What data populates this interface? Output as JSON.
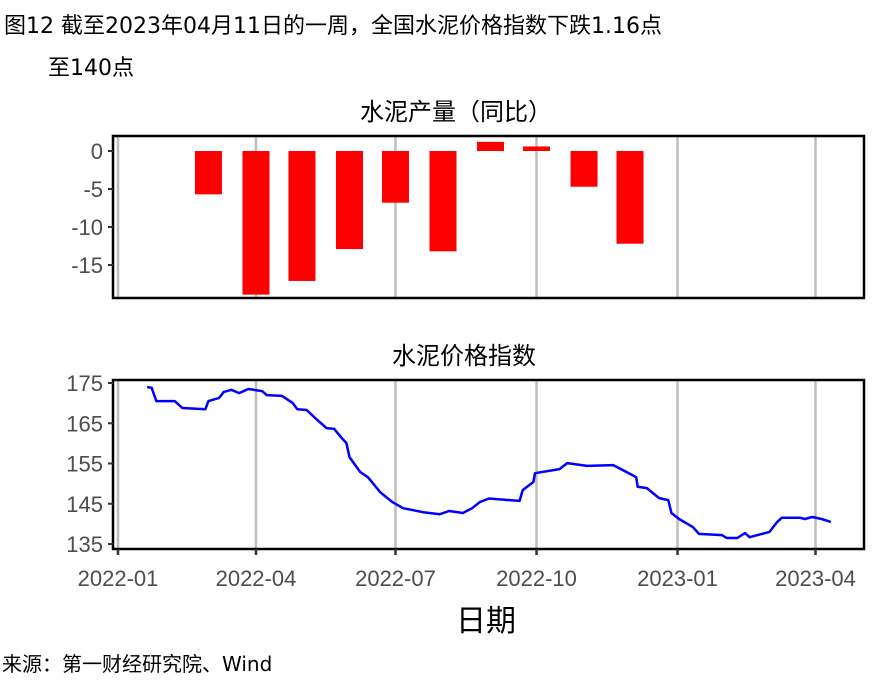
{
  "figure": {
    "title_line1": "图12  截至2023年04月11日的一周，全国水泥价格指数下跌1.16点",
    "title_line2": "至140点",
    "source": "来源：第一财经研究院、Wind",
    "xlabel": "日期"
  },
  "chart_data": [
    {
      "type": "bar",
      "title": "水泥产量（同比）",
      "ylabel": "",
      "ylim": [
        -20,
        2
      ],
      "yticks": [
        "0",
        "-5",
        "-10",
        "-15"
      ],
      "ytick_values": [
        0,
        -5,
        -10,
        -15
      ],
      "xlim": [
        "2022-01-01",
        "2023-04-20"
      ],
      "xticks": [
        "2022-01",
        "2022-04",
        "2022-07",
        "2022-10",
        "2023-01",
        "2023-04"
      ],
      "x": [
        "2022-03-01",
        "2022-04-01",
        "2022-05-01",
        "2022-06-01",
        "2022-07-01",
        "2022-08-01",
        "2022-09-01",
        "2022-10-01",
        "2022-11-01",
        "2022-12-01"
      ],
      "values": [
        -5.7,
        -18.9,
        -17.1,
        -12.9,
        -6.8,
        -13.2,
        1.2,
        0.6,
        -4.7,
        -12.2
      ],
      "color": "#ff0000",
      "grid": "vertical"
    },
    {
      "type": "line",
      "title": "水泥价格指数",
      "ylim": [
        135,
        175
      ],
      "yticks": [
        "175",
        "165",
        "155",
        "145",
        "135"
      ],
      "ytick_values": [
        175,
        165,
        155,
        145,
        135
      ],
      "xticks": [
        "2022-01",
        "2022-04",
        "2022-07",
        "2022-10",
        "2023-01",
        "2023-04"
      ],
      "color": "#0000ff",
      "grid": "vertical",
      "x": [
        "2022-01-20",
        "2022-01-23",
        "2022-01-26",
        "2022-02-07",
        "2022-02-12",
        "2022-02-27",
        "2022-03-01",
        "2022-03-08",
        "2022-03-11",
        "2022-03-16",
        "2022-03-21",
        "2022-03-27",
        "2022-04-05",
        "2022-04-08",
        "2022-04-18",
        "2022-04-25",
        "2022-04-28",
        "2022-05-04",
        "2022-05-11",
        "2022-05-17",
        "2022-05-22",
        "2022-05-27",
        "2022-05-30",
        "2022-06-01",
        "2022-06-08",
        "2022-06-13",
        "2022-06-21",
        "2022-06-29",
        "2022-07-06",
        "2022-07-19",
        "2022-07-30",
        "2022-08-05",
        "2022-08-14",
        "2022-08-20",
        "2022-08-25",
        "2022-08-31",
        "2022-09-20",
        "2022-09-22",
        "2022-09-29",
        "2022-09-30",
        "2022-10-16",
        "2022-10-21",
        "2022-11-03",
        "2022-11-20",
        "2022-11-26",
        "2022-12-05",
        "2022-12-06",
        "2022-12-12",
        "2022-12-20",
        "2022-12-26",
        "2022-12-28",
        "2023-01-02",
        "2023-01-11",
        "2023-01-15",
        "2023-01-30",
        "2023-02-02",
        "2023-02-09",
        "2023-02-14",
        "2023-02-17",
        "2023-03-02",
        "2023-03-07",
        "2023-03-10",
        "2023-03-22",
        "2023-03-25",
        "2023-03-30",
        "2023-04-05",
        "2023-04-11"
      ],
      "values": [
        174.0,
        173.8,
        170.5,
        170.5,
        168.8,
        168.5,
        170.5,
        171.3,
        172.8,
        173.3,
        172.5,
        173.5,
        173.0,
        172.0,
        171.8,
        170.0,
        168.5,
        168.3,
        165.8,
        163.8,
        163.6,
        161.3,
        160.1,
        156.6,
        152.9,
        151.6,
        147.9,
        145.4,
        143.9,
        142.9,
        142.4,
        143.2,
        142.7,
        143.9,
        145.4,
        146.3,
        145.7,
        148.4,
        150.4,
        152.6,
        153.6,
        155.1,
        154.4,
        154.6,
        153.4,
        151.6,
        149.2,
        148.9,
        146.4,
        145.9,
        142.7,
        141.2,
        139.2,
        137.5,
        137.2,
        136.5,
        136.5,
        137.7,
        136.7,
        138.0,
        140.5,
        141.5,
        141.5,
        141.2,
        141.7,
        141.2,
        140.5
      ]
    }
  ]
}
